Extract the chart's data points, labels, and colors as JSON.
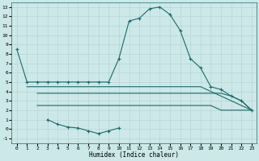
{
  "line1_x": [
    0,
    1,
    2,
    3,
    4,
    5,
    6,
    7,
    8,
    9,
    10,
    11,
    12,
    13,
    14,
    15,
    16,
    17,
    18,
    19,
    20,
    21,
    22,
    23
  ],
  "line1_y": [
    8.5,
    5.0,
    5.0,
    5.0,
    5.0,
    5.0,
    5.0,
    5.0,
    5.0,
    5.0,
    7.5,
    11.5,
    11.8,
    12.8,
    13.0,
    12.2,
    10.5,
    7.5,
    6.5,
    4.5,
    4.2,
    3.5,
    3.0,
    2.0
  ],
  "line2_x": [
    1,
    2,
    3,
    4,
    5,
    6,
    7,
    8,
    9,
    10,
    11,
    12,
    13,
    14,
    15,
    16,
    17,
    18,
    19,
    20,
    21,
    22,
    23
  ],
  "line2_y": [
    4.5,
    4.5,
    4.5,
    4.5,
    4.5,
    4.5,
    4.5,
    4.5,
    4.5,
    4.5,
    4.5,
    4.5,
    4.5,
    4.5,
    4.5,
    4.5,
    4.5,
    4.5,
    4.0,
    3.5,
    3.0,
    2.5,
    2.0
  ],
  "line3_x": [
    2,
    3,
    4,
    5,
    6,
    7,
    8,
    9,
    10,
    11,
    12,
    13,
    14,
    15,
    16,
    17,
    18,
    19,
    20,
    21,
    22,
    23
  ],
  "line3_y": [
    3.8,
    3.8,
    3.8,
    3.8,
    3.8,
    3.8,
    3.8,
    3.8,
    3.8,
    3.8,
    3.8,
    3.8,
    3.8,
    3.8,
    3.8,
    3.8,
    3.8,
    3.8,
    3.8,
    3.5,
    3.0,
    2.0
  ],
  "line4_x": [
    2,
    3,
    4,
    5,
    6,
    7,
    8,
    9,
    10,
    11,
    12,
    13,
    14,
    15,
    16,
    17,
    18,
    19,
    20,
    21,
    22,
    23
  ],
  "line4_y": [
    2.5,
    2.5,
    2.5,
    2.5,
    2.5,
    2.5,
    2.5,
    2.5,
    2.5,
    2.5,
    2.5,
    2.5,
    2.5,
    2.5,
    2.5,
    2.5,
    2.5,
    2.5,
    2.0,
    2.0,
    2.0,
    2.0
  ],
  "line5_x": [
    3,
    4,
    5,
    6,
    7,
    8,
    9,
    10
  ],
  "line5_y": [
    1.0,
    0.5,
    0.2,
    0.1,
    -0.2,
    -0.5,
    -0.2,
    0.1
  ],
  "ylim": [
    -1.5,
    13.5
  ],
  "xlim": [
    -0.5,
    23.5
  ],
  "yticks": [
    -1,
    0,
    1,
    2,
    3,
    4,
    5,
    6,
    7,
    8,
    9,
    10,
    11,
    12,
    13
  ],
  "xticks": [
    0,
    1,
    2,
    3,
    4,
    5,
    6,
    7,
    8,
    9,
    10,
    11,
    12,
    13,
    14,
    15,
    16,
    17,
    18,
    19,
    20,
    21,
    22,
    23
  ],
  "xlabel": "Humidex (Indice chaleur)",
  "line_color": "#1a6b6b",
  "bg_color": "#cce8e8",
  "grid_color": "#b0d8d8"
}
